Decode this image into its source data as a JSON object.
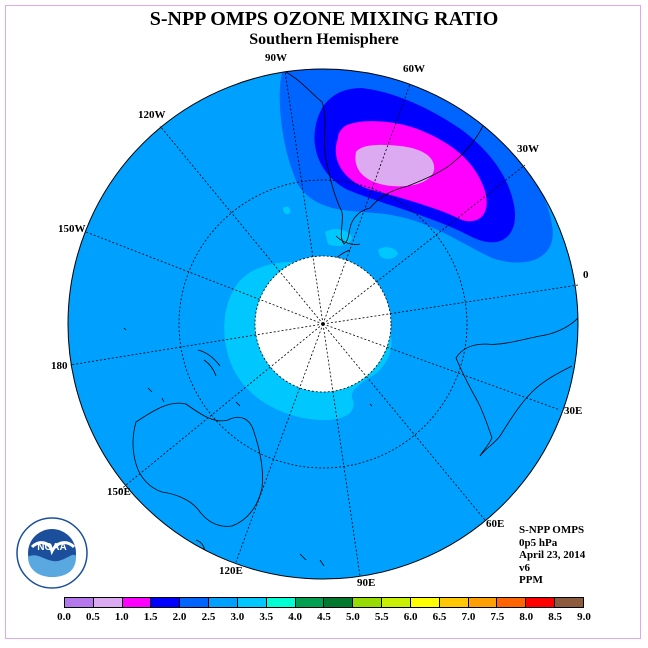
{
  "title": "S-NPP OMPS OZONE MIXING RATIO",
  "subtitle": "Southern Hemisphere",
  "longitude_labels": {
    "lon_90w": "90W",
    "lon_60w": "60W",
    "lon_30w": "30W",
    "lon_0": "0",
    "lon_30e": "30E",
    "lon_60e": "60E",
    "lon_90e": "90E",
    "lon_120e": "120E",
    "lon_150e": "150E",
    "lon_180": "180",
    "lon_150w": "150W",
    "lon_120w": "120W"
  },
  "info": {
    "instrument": "S-NPP OMPS",
    "level": "0p5 hPa",
    "date": "April 23, 2014",
    "version": "v6",
    "units": "PPM"
  },
  "logo_text": "NOAA",
  "colorbar": {
    "colors": [
      "#b478ec",
      "#dcaaf0",
      "#ff00ff",
      "#0000ff",
      "#0064ff",
      "#00a0ff",
      "#00c8ff",
      "#00ffd2",
      "#00a050",
      "#00782d",
      "#96dc00",
      "#c8f000",
      "#ffff00",
      "#ffc800",
      "#ffa000",
      "#ff6400",
      "#ff0000",
      "#8c5a3c"
    ],
    "ticks": [
      "0.0",
      "0.5",
      "1.0",
      "1.5",
      "2.0",
      "2.5",
      "3.0",
      "3.5",
      "4.0",
      "4.5",
      "5.0",
      "5.5",
      "6.0",
      "6.5",
      "7.0",
      "7.5",
      "8.0",
      "8.5",
      "9.0"
    ]
  },
  "map_colors": {
    "field_base": "#00a0ff",
    "field_lower": "#00c8ff",
    "contour_2_5": "#0064ff",
    "contour_2_0": "#0000ff",
    "contour_1_5": "#ff00ff",
    "contour_1_0": "#dcaaf0"
  }
}
